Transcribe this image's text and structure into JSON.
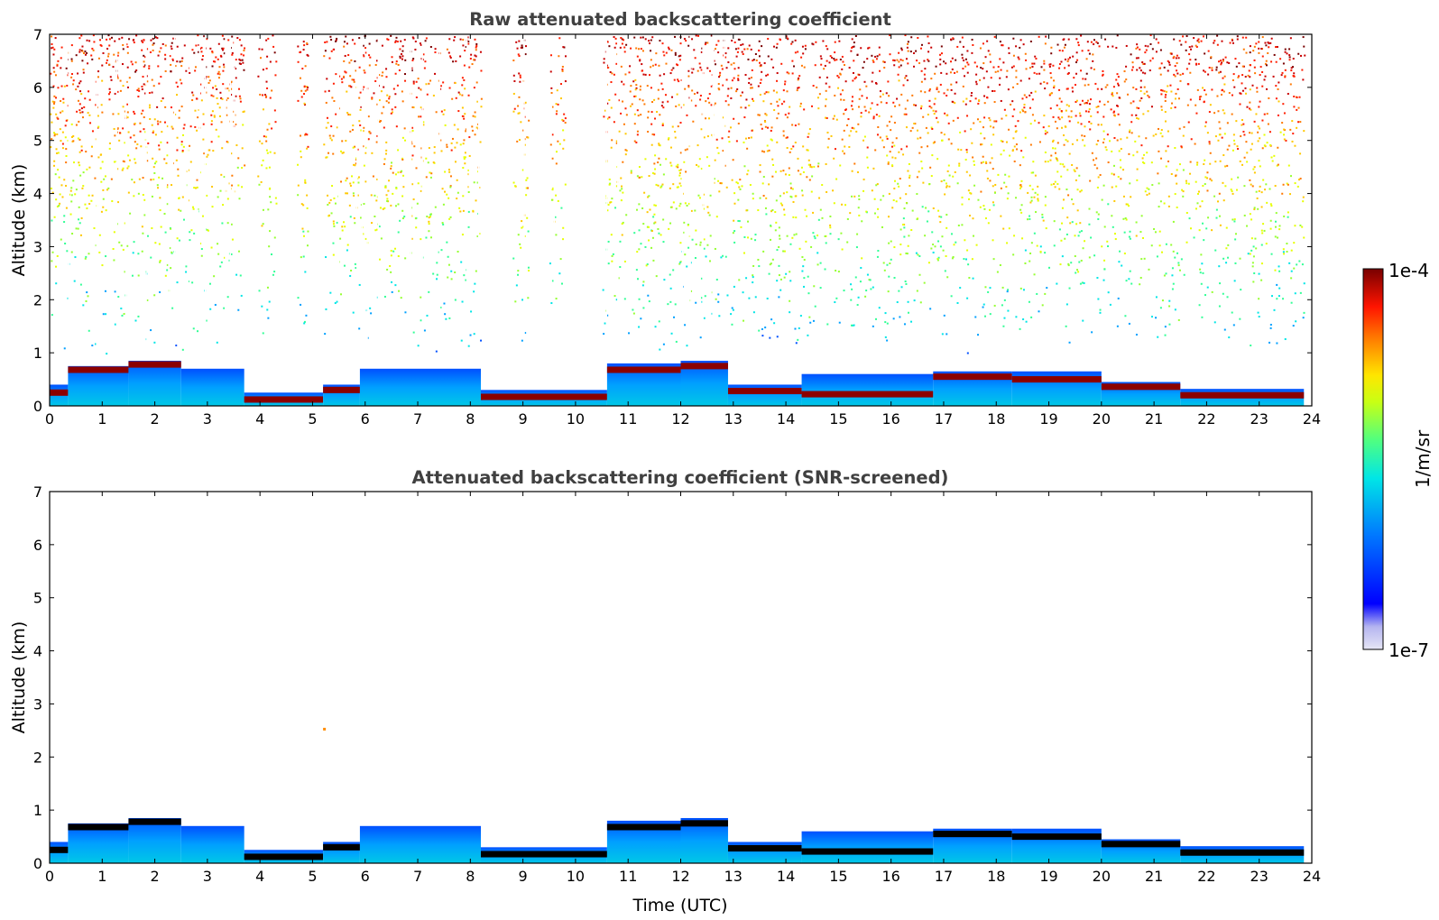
{
  "chart_data": [
    {
      "type": "heatmap",
      "title": "Raw attenuated backscattering coefficient",
      "xlabel": "",
      "ylabel": "Altitude (km)",
      "xlim": [
        0,
        24
      ],
      "ylim": [
        0,
        7
      ],
      "x_ticks": [
        "0",
        "1",
        "2",
        "3",
        "4",
        "5",
        "6",
        "7",
        "8",
        "9",
        "10",
        "11",
        "12",
        "13",
        "14",
        "15",
        "16",
        "17",
        "18",
        "19",
        "20",
        "21",
        "22",
        "23",
        "24"
      ],
      "y_ticks": [
        "0",
        "1",
        "2",
        "3",
        "4",
        "5",
        "6",
        "7"
      ],
      "data_end_time": 23.85,
      "boundary_layer": [
        {
          "t0": 0.0,
          "t1": 0.35,
          "top": 0.4,
          "cloud": 0.25
        },
        {
          "t0": 0.35,
          "t1": 1.5,
          "top": 0.75,
          "cloud": 0.68
        },
        {
          "t0": 1.5,
          "t1": 2.5,
          "top": 0.85,
          "cloud": 0.78
        },
        {
          "t0": 2.5,
          "t1": 3.7,
          "top": 0.7,
          "cloud": null
        },
        {
          "t0": 3.7,
          "t1": 5.2,
          "top": 0.25,
          "cloud": 0.12
        },
        {
          "t0": 5.2,
          "t1": 5.9,
          "top": 0.4,
          "cloud": 0.3
        },
        {
          "t0": 5.9,
          "t1": 8.2,
          "top": 0.7,
          "cloud": null
        },
        {
          "t0": 8.2,
          "t1": 10.6,
          "top": 0.3,
          "cloud": 0.17
        },
        {
          "t0": 10.6,
          "t1": 12.0,
          "top": 0.8,
          "cloud": 0.68
        },
        {
          "t0": 12.0,
          "t1": 12.9,
          "top": 0.85,
          "cloud": 0.75
        },
        {
          "t0": 12.9,
          "t1": 14.3,
          "top": 0.4,
          "cloud": 0.28
        },
        {
          "t0": 14.3,
          "t1": 16.8,
          "top": 0.6,
          "cloud": 0.22
        },
        {
          "t0": 16.8,
          "t1": 18.3,
          "top": 0.65,
          "cloud": 0.55
        },
        {
          "t0": 18.3,
          "t1": 20.0,
          "top": 0.65,
          "cloud": 0.5
        },
        {
          "t0": 20.0,
          "t1": 21.5,
          "top": 0.45,
          "cloud": 0.36
        },
        {
          "t0": 21.5,
          "t1": 23.85,
          "top": 0.32,
          "cloud": 0.2
        }
      ],
      "gaps": [
        [
          3.7,
          3.95
        ],
        [
          4.3,
          4.7
        ],
        [
          4.9,
          5.2
        ],
        [
          6.75,
          6.85
        ],
        [
          8.2,
          8.8
        ],
        [
          9.1,
          9.5
        ],
        [
          9.8,
          10.5
        ]
      ]
    },
    {
      "type": "heatmap",
      "title": "Attenuated backscattering coefficient (SNR-screened)",
      "xlabel": "Time (UTC)",
      "ylabel": "Altitude (km)",
      "xlim": [
        0,
        24
      ],
      "ylim": [
        0,
        7
      ],
      "x_ticks": [
        "0",
        "1",
        "2",
        "3",
        "4",
        "5",
        "6",
        "7",
        "8",
        "9",
        "10",
        "11",
        "12",
        "13",
        "14",
        "15",
        "16",
        "17",
        "18",
        "19",
        "20",
        "21",
        "22",
        "23",
        "24"
      ],
      "y_ticks": [
        "0",
        "1",
        "2",
        "3",
        "4",
        "5",
        "6",
        "7"
      ],
      "isolated_point": {
        "time": 5.2,
        "altitude": 2.55
      }
    }
  ],
  "colorbar": {
    "label": "1/m/sr",
    "max_label": "1e-4",
    "min_label": "1e-7",
    "scale": "log",
    "range": [
      1e-07,
      0.0001
    ],
    "colormap": [
      "#e6e6f5",
      "#b4b4f0",
      "#6464ff",
      "#0000ff",
      "#0050ff",
      "#00a0ff",
      "#00e6e6",
      "#32ff96",
      "#96ff32",
      "#e6ff00",
      "#ffc800",
      "#ff7800",
      "#ff1e00",
      "#c80000",
      "#780000"
    ],
    "cloud_color_screened": "#000000"
  }
}
